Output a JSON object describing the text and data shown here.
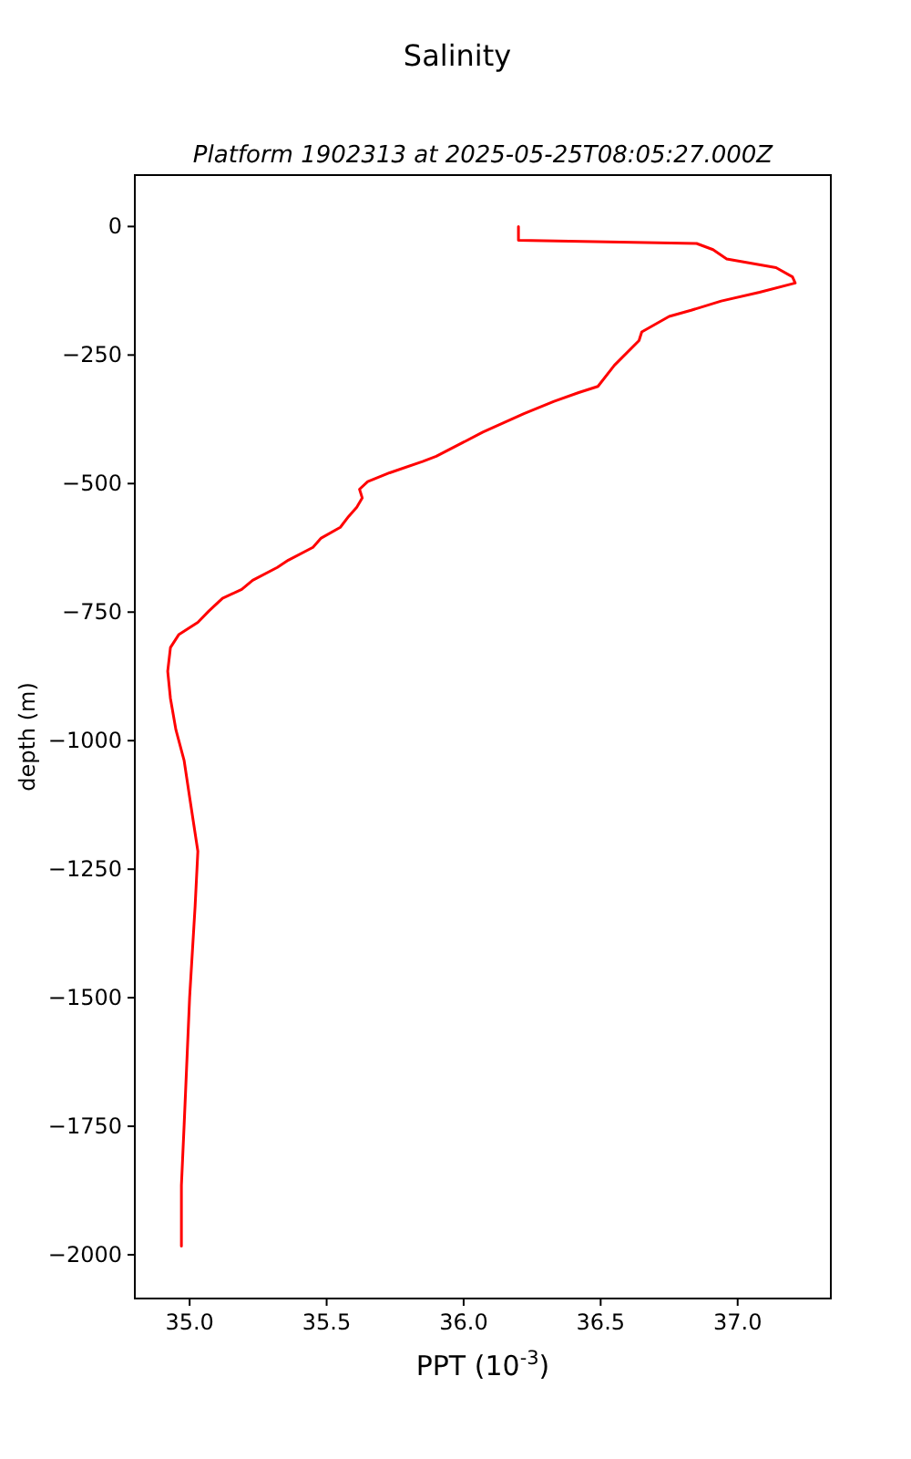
{
  "chart_data": {
    "type": "line",
    "title": "Salinity",
    "subtitle": "Platform 1902313 at 2025-05-25T08:05:27.000Z",
    "xlabel": "PPT (10$^{-3}$)",
    "ylabel": "depth (m)",
    "xlim": [
      34.8,
      37.34
    ],
    "ylim": [
      -2085,
      100
    ],
    "xticks": [
      {
        "value": 35,
        "label": "35.0"
      },
      {
        "value": 35.5,
        "label": "35.5"
      },
      {
        "value": 36,
        "label": "36.0"
      },
      {
        "value": 36.5,
        "label": "36.5"
      },
      {
        "value": 37,
        "label": "37.0"
      }
    ],
    "yticks": [
      0,
      {
        "value": -250,
        "label": "−250"
      },
      {
        "value": -500,
        "label": "−500"
      },
      {
        "value": -750,
        "label": "−750"
      },
      {
        "value": -1000,
        "label": "−1000"
      },
      {
        "value": -1250,
        "label": "−1250"
      },
      {
        "value": -1500,
        "label": "−1500"
      },
      {
        "value": -1750,
        "label": "−1750"
      },
      {
        "value": -2000,
        "label": "−2000"
      }
    ],
    "grid": false,
    "marker": "none",
    "line_style": "solid",
    "series": [
      {
        "color": "#ff0000",
        "x": [
          36.2,
          36.2,
          36.85,
          36.91,
          36.96,
          37.14,
          37.2,
          37.21,
          37.08,
          36.94,
          36.83,
          36.75,
          36.65,
          36.64,
          36.55,
          36.49,
          36.42,
          36.33,
          36.22,
          36.07,
          35.9,
          35.85,
          35.73,
          35.65,
          35.62,
          35.63,
          35.61,
          35.58,
          35.55,
          35.48,
          35.45,
          35.36,
          35.32,
          35.23,
          35.19,
          35.12,
          35.07,
          35.03,
          34.96,
          34.93,
          34.92,
          34.93,
          34.95,
          34.98,
          35,
          35.03,
          35.02,
          35,
          34.98,
          34.97,
          34.97
        ],
        "values": [
          0,
          -27,
          -33,
          -45,
          -63,
          -80,
          -98,
          -110,
          -128,
          -145,
          -163,
          -175,
          -205,
          -222,
          -270,
          -311,
          -323,
          -340,
          -364,
          -400,
          -447,
          -457,
          -479,
          -496,
          -511,
          -528,
          -546,
          -564,
          -585,
          -606,
          -624,
          -649,
          -663,
          -688,
          -706,
          -723,
          -748,
          -770,
          -794,
          -819,
          -865,
          -918,
          -979,
          -1039,
          -1110,
          -1215,
          -1322,
          -1499,
          -1747,
          -1865,
          -1983
        ]
      }
    ]
  }
}
